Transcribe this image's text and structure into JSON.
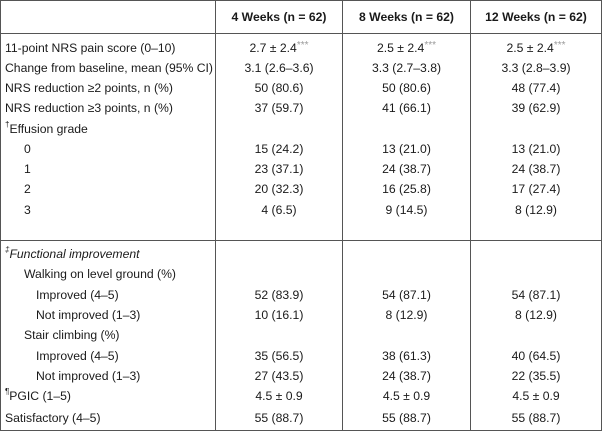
{
  "header": {
    "col1": "4 Weeks (n = 62)",
    "col2": "8 Weeks (n = 62)",
    "col3": "12 Weeks (n = 62)"
  },
  "section1": {
    "rows": [
      {
        "label": "11-point NRS pain score (0–10)",
        "v1": "2.7 ± 2.4",
        "v2": "2.5 ± 2.4",
        "v3": "2.5 ± 2.4",
        "sig": "***"
      },
      {
        "label": "Change from baseline, mean (95% CI)",
        "v1": "3.1 (2.6–3.6)",
        "v2": "3.3 (2.7–3.8)",
        "v3": "3.3 (2.8–3.9)"
      },
      {
        "label": "NRS reduction ≥2 points, n (%)",
        "v1": "50 (80.6)",
        "v2": "50 (80.6)",
        "v3": "48 (77.4)"
      },
      {
        "label": "NRS reduction ≥3 points, n (%)",
        "v1": "37 (59.7)",
        "v2": "41 (66.1)",
        "v3": "39 (62.9)"
      }
    ],
    "effusion": {
      "mark": "†",
      "label": "Effusion grade",
      "rows": [
        {
          "label": "0",
          "v1": "15 (24.2)",
          "v2": "13 (21.0)",
          "v3": "13 (21.0)"
        },
        {
          "label": "1",
          "v1": "23 (37.1)",
          "v2": "24 (38.7)",
          "v3": "24 (38.7)"
        },
        {
          "label": "2",
          "v1": "20 (32.3)",
          "v2": "16 (25.8)",
          "v3": "17 (27.4)"
        },
        {
          "label": "3",
          "v1": "4 (6.5)",
          "v2": "9 (14.5)",
          "v3": "8 (12.9)"
        }
      ]
    }
  },
  "section2": {
    "mark": "‡",
    "label": "Functional improvement",
    "walking": {
      "label": "Walking on level ground (%)",
      "improved": {
        "label": "Improved (4–5)",
        "v1": "52 (83.9)",
        "v2": "54 (87.1)",
        "v3": "54 (87.1)"
      },
      "not_improved": {
        "label": "Not improved (1–3)",
        "v1": "10 (16.1)",
        "v2": "8 (12.9)",
        "v3": "8 (12.9)"
      }
    },
    "stair": {
      "label": "Stair climbing (%)",
      "improved": {
        "label": "Improved (4–5)",
        "v1": "35 (56.5)",
        "v2": "38 (61.3)",
        "v3": "40 (64.5)"
      },
      "not_improved": {
        "label": "Not improved (1–3)",
        "v1": "27 (43.5)",
        "v2": "24 (38.7)",
        "v3": "22 (35.5)"
      }
    },
    "pgic": {
      "mark": "¶",
      "label": "PGIC (1–5)",
      "v1": "4.5 ± 0.9",
      "v2": "4.5 ± 0.9",
      "v3": "4.5 ± 0.9"
    },
    "satisfactory": {
      "label": "Satisfactory (4–5)",
      "v1": "55 (88.7)",
      "v2": "55 (88.7)",
      "v3": "55 (88.7)"
    }
  }
}
